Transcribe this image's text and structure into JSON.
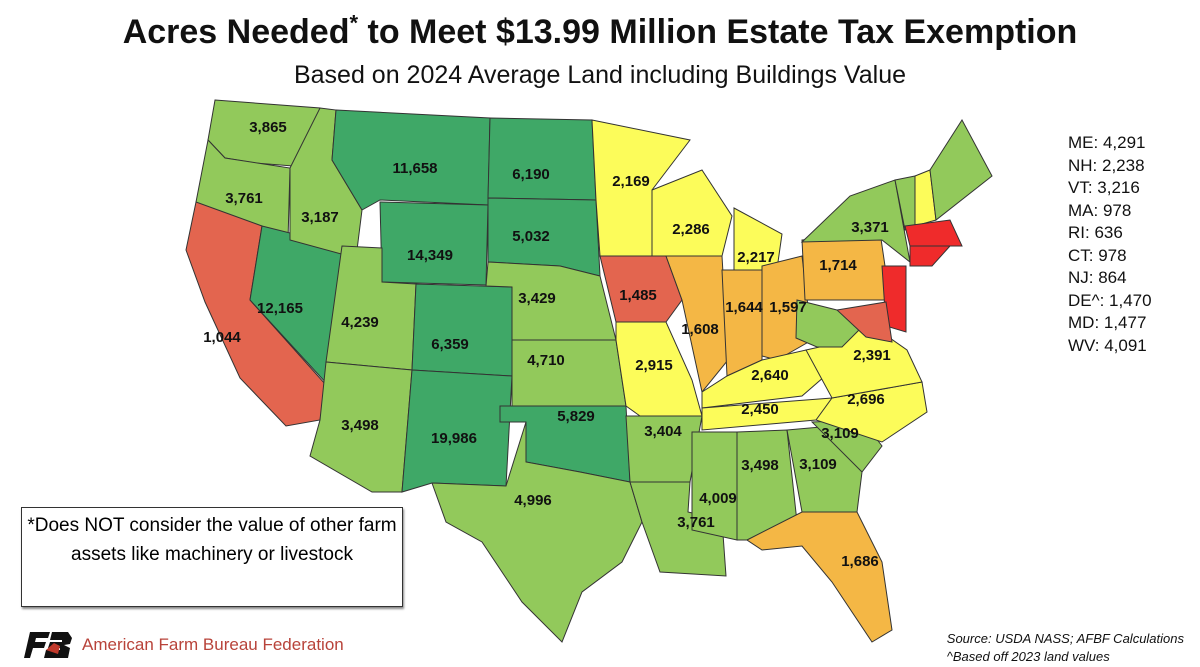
{
  "title": {
    "main_before": "Acres Needed",
    "asterisk": "*",
    "main_after": " to Meet $13.99 Million Estate Tax Exemption",
    "subtitle": "Based on 2024 Average Land including Buildings Value"
  },
  "colors": {
    "dark_green": "#3fa867",
    "light_green": "#92c95b",
    "yellow": "#fcfc5a",
    "orange": "#f4b745",
    "salmon": "#e3654f",
    "red": "#ef2b2b"
  },
  "states": [
    {
      "abbr": "WA",
      "value": "3,865",
      "color": "light_green"
    },
    {
      "abbr": "OR",
      "value": "3,761",
      "color": "light_green"
    },
    {
      "abbr": "CA",
      "value": "1,044",
      "color": "salmon"
    },
    {
      "abbr": "NV",
      "value": "12,165",
      "color": "dark_green"
    },
    {
      "abbr": "ID",
      "value": "3,187",
      "color": "light_green"
    },
    {
      "abbr": "MT",
      "value": "11,658",
      "color": "dark_green"
    },
    {
      "abbr": "WY",
      "value": "14,349",
      "color": "dark_green"
    },
    {
      "abbr": "UT",
      "value": "4,239",
      "color": "light_green"
    },
    {
      "abbr": "CO",
      "value": "6,359",
      "color": "dark_green"
    },
    {
      "abbr": "AZ",
      "value": "3,498",
      "color": "light_green"
    },
    {
      "abbr": "NM",
      "value": "19,986",
      "color": "dark_green"
    },
    {
      "abbr": "ND",
      "value": "6,190",
      "color": "dark_green"
    },
    {
      "abbr": "SD",
      "value": "5,032",
      "color": "dark_green"
    },
    {
      "abbr": "NE",
      "value": "3,429",
      "color": "light_green"
    },
    {
      "abbr": "KS",
      "value": "4,710",
      "color": "light_green"
    },
    {
      "abbr": "OK",
      "value": "5,829",
      "color": "dark_green"
    },
    {
      "abbr": "TX",
      "value": "4,996",
      "color": "light_green"
    },
    {
      "abbr": "MN",
      "value": "2,169",
      "color": "yellow"
    },
    {
      "abbr": "IA",
      "value": "1,485",
      "color": "salmon"
    },
    {
      "abbr": "MO",
      "value": "2,915",
      "color": "yellow"
    },
    {
      "abbr": "AR",
      "value": "3,404",
      "color": "light_green"
    },
    {
      "abbr": "LA",
      "value": "3,761",
      "color": "light_green"
    },
    {
      "abbr": "WI",
      "value": "2,286",
      "color": "yellow"
    },
    {
      "abbr": "IL",
      "value": "1,608",
      "color": "orange"
    },
    {
      "abbr": "MI",
      "value": "2,217",
      "color": "yellow"
    },
    {
      "abbr": "IN",
      "value": "1,644",
      "color": "orange"
    },
    {
      "abbr": "OH",
      "value": "1,597",
      "color": "orange"
    },
    {
      "abbr": "KY",
      "value": "2,640",
      "color": "yellow"
    },
    {
      "abbr": "TN",
      "value": "2,450",
      "color": "yellow"
    },
    {
      "abbr": "MS",
      "value": "4,009",
      "color": "light_green"
    },
    {
      "abbr": "AL",
      "value": "3,498",
      "color": "light_green"
    },
    {
      "abbr": "GA",
      "value": "3,109",
      "color": "light_green"
    },
    {
      "abbr": "FL",
      "value": "1,686",
      "color": "orange"
    },
    {
      "abbr": "SC",
      "value": "3,109",
      "color": "light_green"
    },
    {
      "abbr": "NC",
      "value": "2,696",
      "color": "yellow"
    },
    {
      "abbr": "VA",
      "value": "2,391",
      "color": "yellow"
    },
    {
      "abbr": "WV",
      "value": "",
      "color": "light_green"
    },
    {
      "abbr": "PA",
      "value": "1,714",
      "color": "orange"
    },
    {
      "abbr": "NY",
      "value": "3,371",
      "color": "light_green"
    },
    {
      "abbr": "NJ",
      "value": "",
      "color": "red"
    },
    {
      "abbr": "MD",
      "value": "",
      "color": "salmon"
    },
    {
      "abbr": "VT",
      "value": "",
      "color": "light_green"
    },
    {
      "abbr": "NH",
      "value": "",
      "color": "yellow"
    },
    {
      "abbr": "ME",
      "value": "",
      "color": "light_green"
    },
    {
      "abbr": "MA",
      "value": "",
      "color": "red"
    },
    {
      "abbr": "CT",
      "value": "",
      "color": "red"
    }
  ],
  "side_list": [
    "ME:  4,291",
    "NH: 2,238",
    "VT: 3,216",
    "MA: 978",
    "RI: 636",
    "CT: 978",
    "NJ: 864",
    "DE^: 1,470",
    "MD: 1,477",
    "WV: 4,091"
  ],
  "note": "*Does NOT consider the value of other farm assets like machinery or livestock",
  "logo": {
    "text": "American Farm Bureau Federation",
    "mark": "FB"
  },
  "source": {
    "line1": "Source: USDA NASS; AFBF Calculations",
    "line2": "^Based off 2023 land values"
  }
}
